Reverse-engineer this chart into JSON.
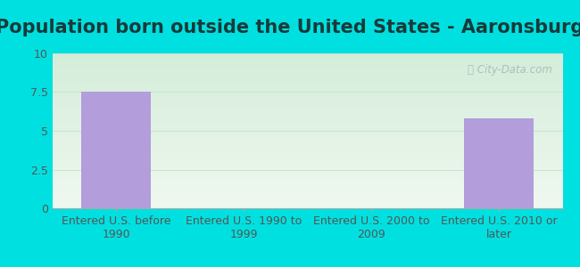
{
  "title": "Population born outside the United States - Aaronsburg",
  "categories": [
    "Entered U.S. before\n1990",
    "Entered U.S. 1990 to\n1999",
    "Entered U.S. 2000 to\n2009",
    "Entered U.S. 2010 or\nlater"
  ],
  "values": [
    7.5,
    0,
    0,
    5.8
  ],
  "bar_color": "#b39ddb",
  "ylim": [
    0,
    10
  ],
  "yticks": [
    0,
    2.5,
    5,
    7.5,
    10
  ],
  "background_outer": "#00e0e0",
  "background_top": "#d4edda",
  "background_bottom": "#f0f8f0",
  "watermark_text": "ⓘ City-Data.com",
  "title_fontsize": 15,
  "tick_fontsize": 9,
  "grid_color": "#c8e6c9",
  "title_color": "#1a3a3a"
}
